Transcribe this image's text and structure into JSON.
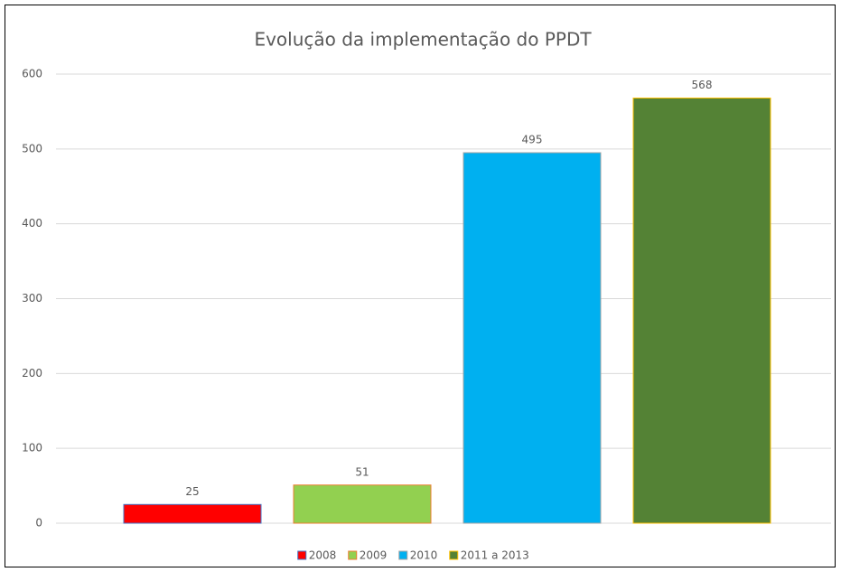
{
  "chart_data": {
    "type": "bar",
    "title": "Evolução da implementação do PPDT",
    "categories": [
      null
    ],
    "series": [
      {
        "name": "2008",
        "color": "#ff0000",
        "border_color": "#4472c4",
        "values": [
          25
        ]
      },
      {
        "name": "2009",
        "color": "#92d050",
        "border_color": "#ed7d31",
        "values": [
          51
        ]
      },
      {
        "name": "2010",
        "color": "#00b0f0",
        "border_color": "#a5a5a5",
        "values": [
          495
        ]
      },
      {
        "name": "2011 a 2013",
        "color": "#548235",
        "border_color": "#ffc000",
        "values": [
          568
        ]
      }
    ],
    "ylim": [
      0,
      600
    ],
    "yticks": [
      0,
      100,
      200,
      300,
      400,
      500,
      600
    ],
    "grid": true,
    "legend": "bottom"
  }
}
